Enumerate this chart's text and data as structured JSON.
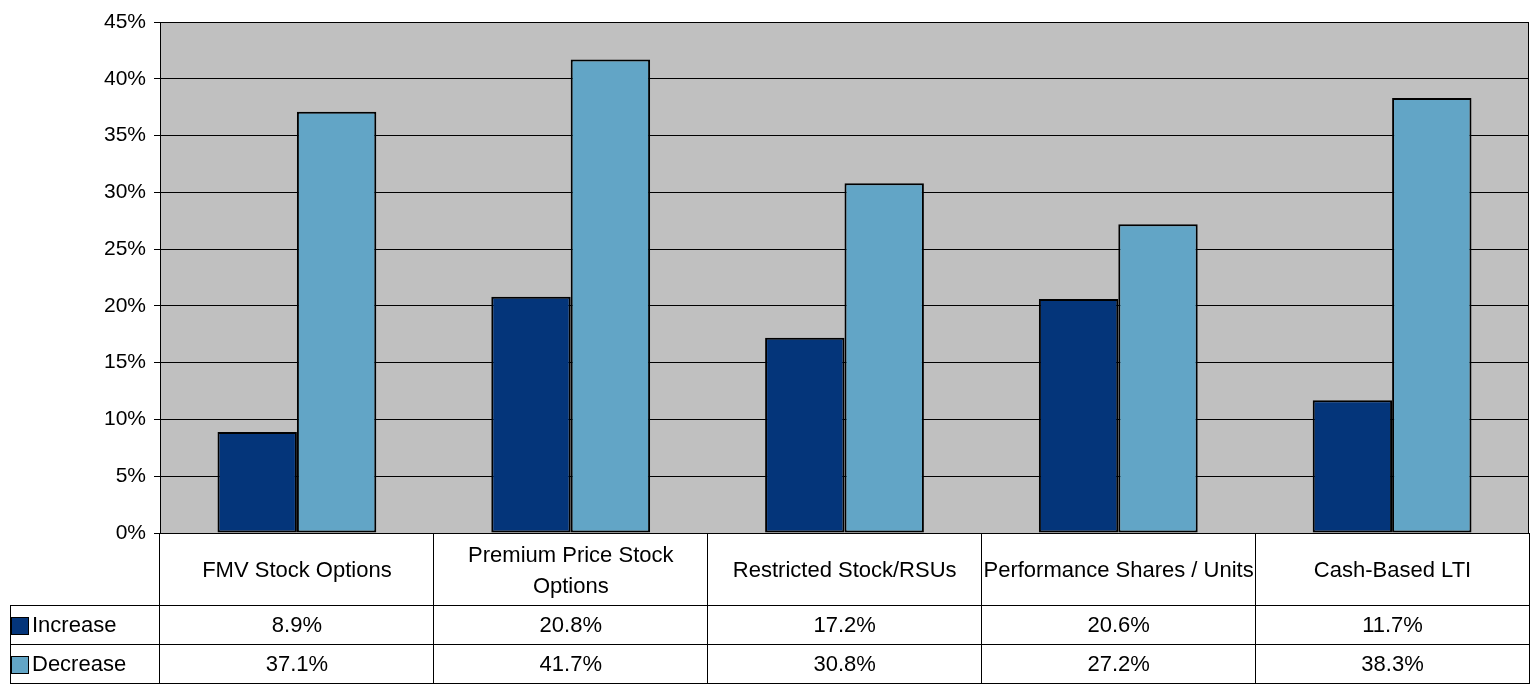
{
  "chart_data": {
    "type": "bar",
    "categories": [
      "FMV Stock Options",
      "Premium Price Stock Options",
      "Restricted Stock/RSUs",
      "Performance Shares / Units",
      "Cash-Based LTI"
    ],
    "series": [
      {
        "name": "Increase",
        "color": "#04357a",
        "values": [
          8.9,
          20.8,
          17.2,
          20.6,
          11.7
        ],
        "value_labels": [
          "8.9%",
          "20.8%",
          "17.2%",
          "20.6%",
          "11.7%"
        ]
      },
      {
        "name": "Decrease",
        "color": "#62a5c6",
        "values": [
          37.1,
          41.7,
          30.8,
          27.2,
          38.3
        ],
        "value_labels": [
          "37.1%",
          "41.7%",
          "30.8%",
          "27.2%",
          "38.3%"
        ]
      }
    ],
    "ylim": [
      0,
      45
    ],
    "yticks": [
      {
        "value": 0,
        "label": "0%"
      },
      {
        "value": 5,
        "label": "5%"
      },
      {
        "value": 10,
        "label": "10%"
      },
      {
        "value": 15,
        "label": "15%"
      },
      {
        "value": 20,
        "label": "20%"
      },
      {
        "value": 25,
        "label": "25%"
      },
      {
        "value": 30,
        "label": "30%"
      },
      {
        "value": 35,
        "label": "35%"
      },
      {
        "value": 40,
        "label": "40%"
      },
      {
        "value": 45,
        "label": "45%"
      }
    ],
    "grid": "y",
    "legend": "bottom left"
  }
}
